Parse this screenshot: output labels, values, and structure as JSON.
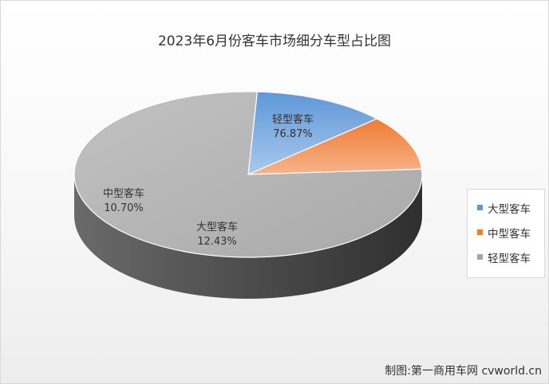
{
  "chart_data": {
    "type": "pie",
    "title": "2023年6月份客车市场细分车型占比图",
    "slices": [
      {
        "name": "大型客车",
        "value": 12.43,
        "label": "12.43%",
        "color": "#5b9bd5"
      },
      {
        "name": "中型客车",
        "value": 10.7,
        "label": "10.70%",
        "color": "#ed7d31"
      },
      {
        "name": "轻型客车",
        "value": 76.87,
        "label": "76.87%",
        "color": "#a5a5a5"
      }
    ],
    "legend_position": "right"
  },
  "credit": "制图:第一商用车网 cvworld.cn"
}
